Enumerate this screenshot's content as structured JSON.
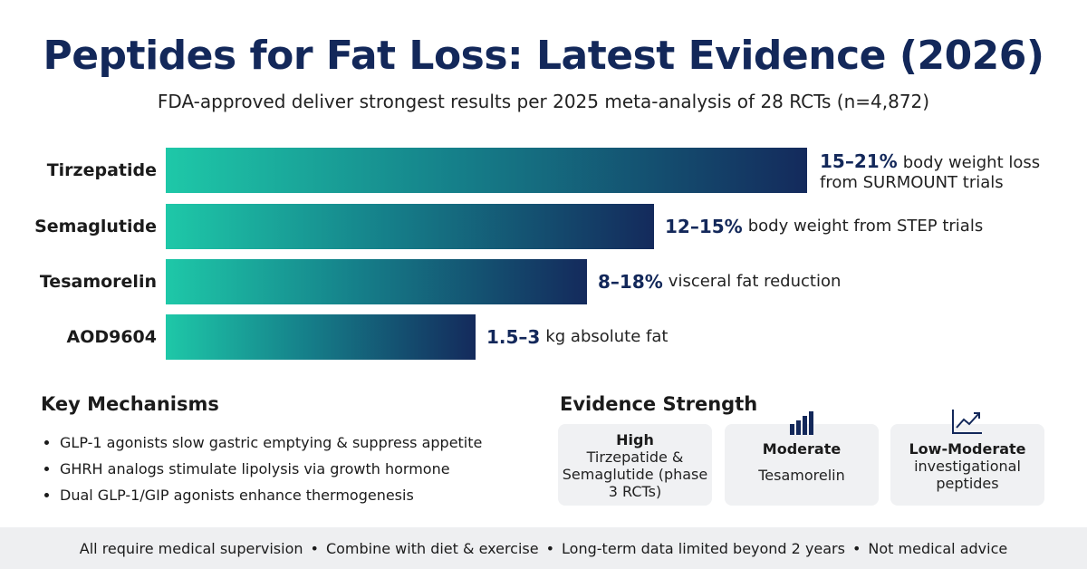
{
  "header": {
    "title": "Peptides for Fat Loss: Latest Evidence (2026)",
    "subtitle": "FDA-approved deliver strongest results per 2025 meta-analysis of 28 RCTs (n=4,872)"
  },
  "rows": [
    {
      "label": "Tirzepatide",
      "highlight": "15–21%",
      "text": "body weight loss from SURMOUNT trials"
    },
    {
      "label": "Semaglutide",
      "highlight": "12–15%",
      "text": "body weight from STEP trials"
    },
    {
      "label": "Tesamorelin",
      "highlight": "8–18%",
      "text": "visceral fat reduction"
    },
    {
      "label": "AOD9604",
      "highlight": "1.5–3",
      "text": "kg absolute fat"
    }
  ],
  "mechanisms": {
    "title": "Key Mechanisms",
    "items": [
      "GLP-1 agonists slow gastric emptying & suppress appetite",
      "GHRH analogs stimulate lipolysis via growth hormone",
      "Dual GLP-1/GIP agonists enhance thermogenesis"
    ]
  },
  "evidence": {
    "title": "Evidence Strength",
    "cards": [
      {
        "level": "High",
        "text": "Tirzepatide & Semaglutide (phase 3 RCTs)"
      },
      {
        "level": "Moderate",
        "text": "Tesamorelin"
      },
      {
        "level": "Low-Moderate",
        "text": "investigational peptides"
      }
    ]
  },
  "footer": {
    "items": [
      "All require medical supervision",
      "Combine with diet & exercise",
      "Long-term data limited beyond 2 years",
      "Not medical advice"
    ]
  }
}
